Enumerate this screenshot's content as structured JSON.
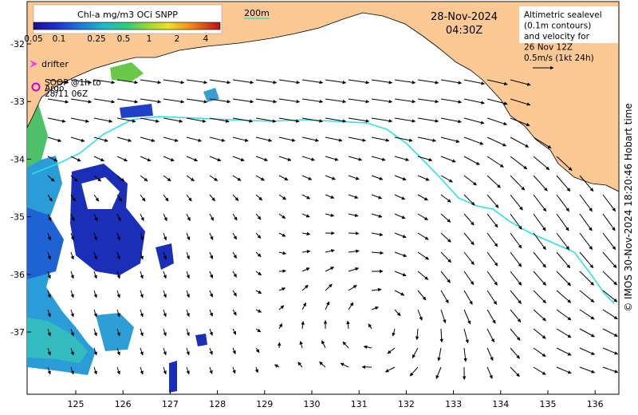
{
  "colorbar": {
    "title": "Chl-a mg/m3 OCi SNPP",
    "ticks": [
      "0.05",
      "0.1",
      "0.25",
      "0.5",
      "1",
      "2",
      "4"
    ]
  },
  "contour_label": "200m",
  "date": "28-Nov-2024",
  "time": "04:30Z",
  "info": {
    "lines": [
      "Altimetric sealevel",
      "(0.1m contours)",
      "and velocity for",
      "26 Nov 12Z",
      "0.5m/s (1kt 24h)"
    ]
  },
  "legend": {
    "drifter_label": "drifter",
    "soop_lines": [
      "SOOP @1h to",
      "28/11 06Z"
    ],
    "argo_label": "Argo"
  },
  "axes": {
    "x_ticks": [
      "125",
      "126",
      "127",
      "128",
      "129",
      "130",
      "131",
      "132",
      "133",
      "134",
      "135",
      "136"
    ],
    "y_ticks": [
      "-32",
      "-33",
      "-34",
      "-35",
      "-36",
      "-37"
    ]
  },
  "credit": "© IMOS 30-Nov-2024 18:20:46 Hobart time",
  "colors": {
    "land": "#fcc893",
    "contour": "#2de0e8",
    "arrow": "#000000",
    "drifter": "#ff33ff",
    "argo": "#cc00cc"
  }
}
